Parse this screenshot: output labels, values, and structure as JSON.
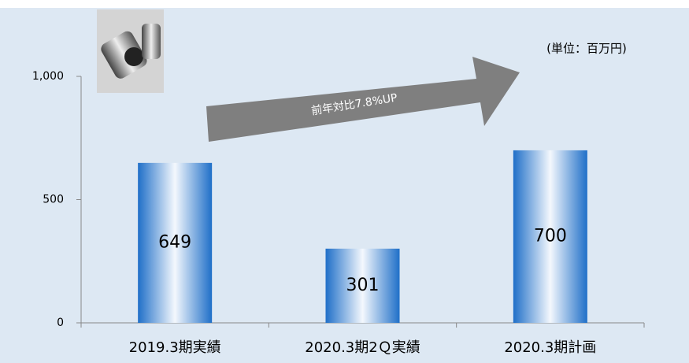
{
  "chart_data": {
    "type": "bar",
    "categories": [
      "2019.3期実績",
      "2020.3期2Ｑ実績",
      "2020.3期計画"
    ],
    "values": [
      649,
      301,
      700
    ],
    "color": "#2a7fd4",
    "ylim": [
      0,
      1000
    ],
    "yticks": [
      0,
      500,
      {
        "value": 1000,
        "label": "1,000"
      }
    ],
    "annotations": [
      "(単位：百万円)",
      "前年対比7.8%UP"
    ]
  }
}
